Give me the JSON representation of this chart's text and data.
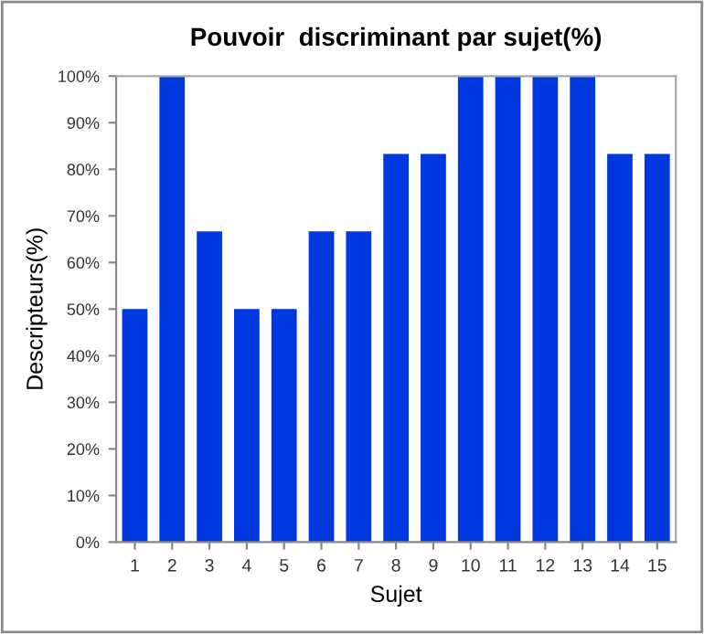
{
  "chart_data": {
    "type": "bar",
    "title": "Pouvoir  discriminant par sujet(%)",
    "xlabel": "Sujet",
    "ylabel": "Descripteurs(%)",
    "categories": [
      "1",
      "2",
      "3",
      "4",
      "5",
      "6",
      "7",
      "8",
      "9",
      "10",
      "11",
      "12",
      "13",
      "14",
      "15"
    ],
    "values": [
      50,
      100,
      66.7,
      50,
      50,
      66.7,
      66.7,
      83.3,
      83.3,
      100,
      100,
      100,
      100,
      83.3,
      83.3
    ],
    "color": "#0038e0",
    "ylim": [
      0,
      100
    ],
    "yticks": [
      {
        "value": 0,
        "label": "0%"
      },
      {
        "value": 10,
        "label": "10%"
      },
      {
        "value": 20,
        "label": "20%"
      },
      {
        "value": 30,
        "label": "30%"
      },
      {
        "value": 40,
        "label": "40%"
      },
      {
        "value": 50,
        "label": "50%"
      },
      {
        "value": 60,
        "label": "60%"
      },
      {
        "value": 70,
        "label": "70%"
      },
      {
        "value": 80,
        "label": "80%"
      },
      {
        "value": 90,
        "label": "90%"
      },
      {
        "value": 100,
        "label": "100%"
      }
    ]
  }
}
